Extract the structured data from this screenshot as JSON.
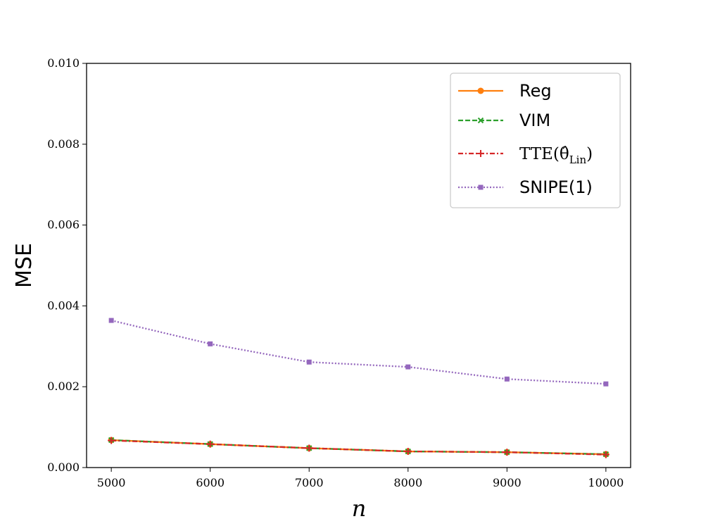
{
  "chart_data": {
    "type": "line",
    "xlabel": "n",
    "ylabel": "MSE",
    "xlim": [
      4750,
      10250
    ],
    "ylim": [
      0.0,
      0.01
    ],
    "x": [
      5000,
      6000,
      7000,
      8000,
      9000,
      10000
    ],
    "x_tick_labels": [
      "5000",
      "6000",
      "7000",
      "8000",
      "9000",
      "10000"
    ],
    "y_tick_labels": [
      "0.000",
      "0.002",
      "0.004",
      "0.006",
      "0.008",
      "0.010"
    ],
    "y_ticks": [
      0.0,
      0.002,
      0.004,
      0.006,
      0.008,
      0.01
    ],
    "grid": false,
    "legend_position": "top-right",
    "series": [
      {
        "name": "Reg",
        "color": "#ff7f0e",
        "linestyle": "solid",
        "marker": "circle",
        "values": [
          0.00068,
          0.00058,
          0.00048,
          0.0004,
          0.00038,
          0.00033
        ]
      },
      {
        "name": "VIM",
        "color": "#2ca02c",
        "linestyle": "dashed",
        "marker": "x",
        "values": [
          0.00068,
          0.00058,
          0.00048,
          0.0004,
          0.00038,
          0.00033
        ]
      },
      {
        "name": "TTE(θ̂Lin)",
        "color": "#d62728",
        "linestyle": "dashdot",
        "marker": "plus",
        "values": [
          0.00067,
          0.00058,
          0.00048,
          0.0004,
          0.00038,
          0.00032
        ]
      },
      {
        "name": "SNIPE(1)",
        "color": "#9467bd",
        "linestyle": "dotted",
        "marker": "square",
        "values": [
          0.00364,
          0.00306,
          0.00261,
          0.00249,
          0.00219,
          0.00207
        ]
      }
    ]
  }
}
